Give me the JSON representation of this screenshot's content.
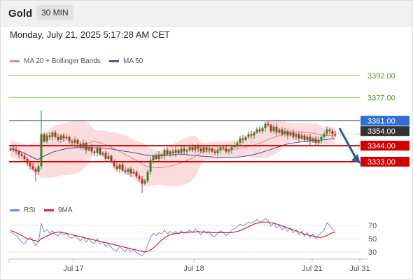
{
  "header": {
    "title": "Gold",
    "timeframe": "30 MIN"
  },
  "timestamp": "Monday, July 21, 2025 5:17:28 AM CET",
  "colors": {
    "candle_up": "#2a8a2a",
    "candle_down": "#c62828",
    "ma20": "#f08080",
    "bollinger_fill": "#fbd0d0",
    "ma50": "#3a5aa0",
    "resistance": "#8bc34a",
    "support": "#d50000",
    "current": "#2f4f9f",
    "arrow": "#2a5aa0",
    "rsi": "#6a8ee8",
    "rsi_ma": "#e02020"
  },
  "chart_data": [
    {
      "type": "candlestick",
      "legend": [
        {
          "name": "MA 20 + Bollinger Bands",
          "color": "#f08080"
        },
        {
          "name": "MA 50",
          "color": "#3a5aa0"
        }
      ],
      "x_labels": [
        "Jul 17",
        "Jul 18",
        "Jul 21",
        "Jul 31"
      ],
      "ylim": [
        3318,
        3405
      ],
      "levels": [
        {
          "label": "3392.00",
          "value": 3392,
          "kind": "resistance"
        },
        {
          "label": "3377.00",
          "value": 3377,
          "kind": "resistance"
        },
        {
          "label": "3361.00",
          "value": 3361,
          "kind": "current"
        },
        {
          "label": "3354.00",
          "value": 3354,
          "kind": "last"
        },
        {
          "label": "3344.00",
          "value": 3344,
          "kind": "support"
        },
        {
          "label": "3333.00",
          "value": 3333,
          "kind": "support"
        }
      ],
      "close": [
        3342,
        3341,
        3340,
        3338,
        3337,
        3335,
        3332,
        3330,
        3328,
        3326,
        3330,
        3352,
        3347,
        3351,
        3350,
        3353,
        3350,
        3348,
        3351,
        3349,
        3350,
        3347,
        3346,
        3348,
        3345,
        3343,
        3346,
        3341,
        3343,
        3340,
        3339,
        3342,
        3338,
        3339,
        3335,
        3337,
        3333,
        3330,
        3328,
        3331,
        3327,
        3326,
        3328,
        3325,
        3326,
        3323,
        3321,
        3318,
        3320,
        3326,
        3334,
        3337,
        3335,
        3338,
        3337,
        3341,
        3338,
        3340,
        3339,
        3341,
        3339,
        3342,
        3340,
        3341,
        3343,
        3341,
        3344,
        3342,
        3340,
        3343,
        3341,
        3342,
        3340,
        3339,
        3341,
        3343,
        3342,
        3340,
        3341,
        3343,
        3344,
        3346,
        3349,
        3348,
        3350,
        3352,
        3351,
        3353,
        3355,
        3354,
        3356,
        3359,
        3358,
        3354,
        3357,
        3353,
        3355,
        3352,
        3354,
        3351,
        3353,
        3350,
        3352,
        3349,
        3351,
        3348,
        3350,
        3347,
        3349,
        3346,
        3348,
        3350,
        3352,
        3355,
        3354,
        3352,
        3351
      ]
    },
    {
      "type": "line",
      "legend": [
        {
          "name": "RSI",
          "color": "#6a8ee8"
        },
        {
          "name": "9MA",
          "color": "#e02020"
        }
      ],
      "y_ticks": [
        "70",
        "50",
        "30"
      ],
      "ylim": [
        20,
        80
      ],
      "series": [
        {
          "name": "RSI",
          "values": [
            60,
            58,
            55,
            50,
            45,
            42,
            48,
            52,
            47,
            40,
            45,
            73,
            60,
            64,
            58,
            62,
            57,
            54,
            59,
            56,
            58,
            52,
            51,
            55,
            50,
            47,
            53,
            45,
            50,
            44,
            43,
            50,
            42,
            45,
            38,
            43,
            37,
            33,
            31,
            39,
            33,
            31,
            36,
            31,
            34,
            29,
            27,
            24,
            30,
            40,
            52,
            58,
            55,
            59,
            57,
            63,
            57,
            61,
            58,
            61,
            57,
            62,
            58,
            60,
            63,
            59,
            65,
            60,
            56,
            62,
            58,
            60,
            55,
            53,
            58,
            62,
            59,
            55,
            58,
            63,
            65,
            68,
            72,
            69,
            72,
            75,
            73,
            76,
            79,
            75,
            77,
            80,
            78,
            69,
            74,
            66,
            70,
            63,
            67,
            61,
            65,
            59,
            63,
            56,
            61,
            54,
            59,
            52,
            57,
            50,
            55,
            59,
            63,
            74,
            70,
            64,
            62
          ]
        },
        {
          "name": "9MA",
          "values": [
            62,
            61,
            59,
            57,
            55,
            52,
            50,
            49,
            48,
            47,
            46,
            50,
            52,
            54,
            56,
            58,
            59,
            60,
            60,
            59,
            58,
            57,
            56,
            55,
            54,
            53,
            52,
            51,
            50,
            49,
            48,
            47,
            46,
            45,
            44,
            43,
            42,
            41,
            40,
            39,
            38,
            37,
            36,
            35,
            34,
            33,
            32,
            31,
            30,
            31,
            33,
            36,
            40,
            44,
            48,
            51,
            54,
            56,
            57,
            58,
            58,
            59,
            59,
            59,
            60,
            60,
            60,
            61,
            60,
            60,
            60,
            60,
            59,
            59,
            59,
            59,
            59,
            59,
            59,
            59,
            60,
            61,
            62,
            64,
            66,
            68,
            70,
            72,
            73,
            74,
            75,
            75,
            75,
            74,
            73,
            72,
            71,
            69,
            68,
            66,
            65,
            63,
            62,
            60,
            59,
            57,
            56,
            55,
            54,
            53,
            52,
            52,
            53,
            55,
            57,
            59,
            60
          ]
        }
      ]
    }
  ]
}
